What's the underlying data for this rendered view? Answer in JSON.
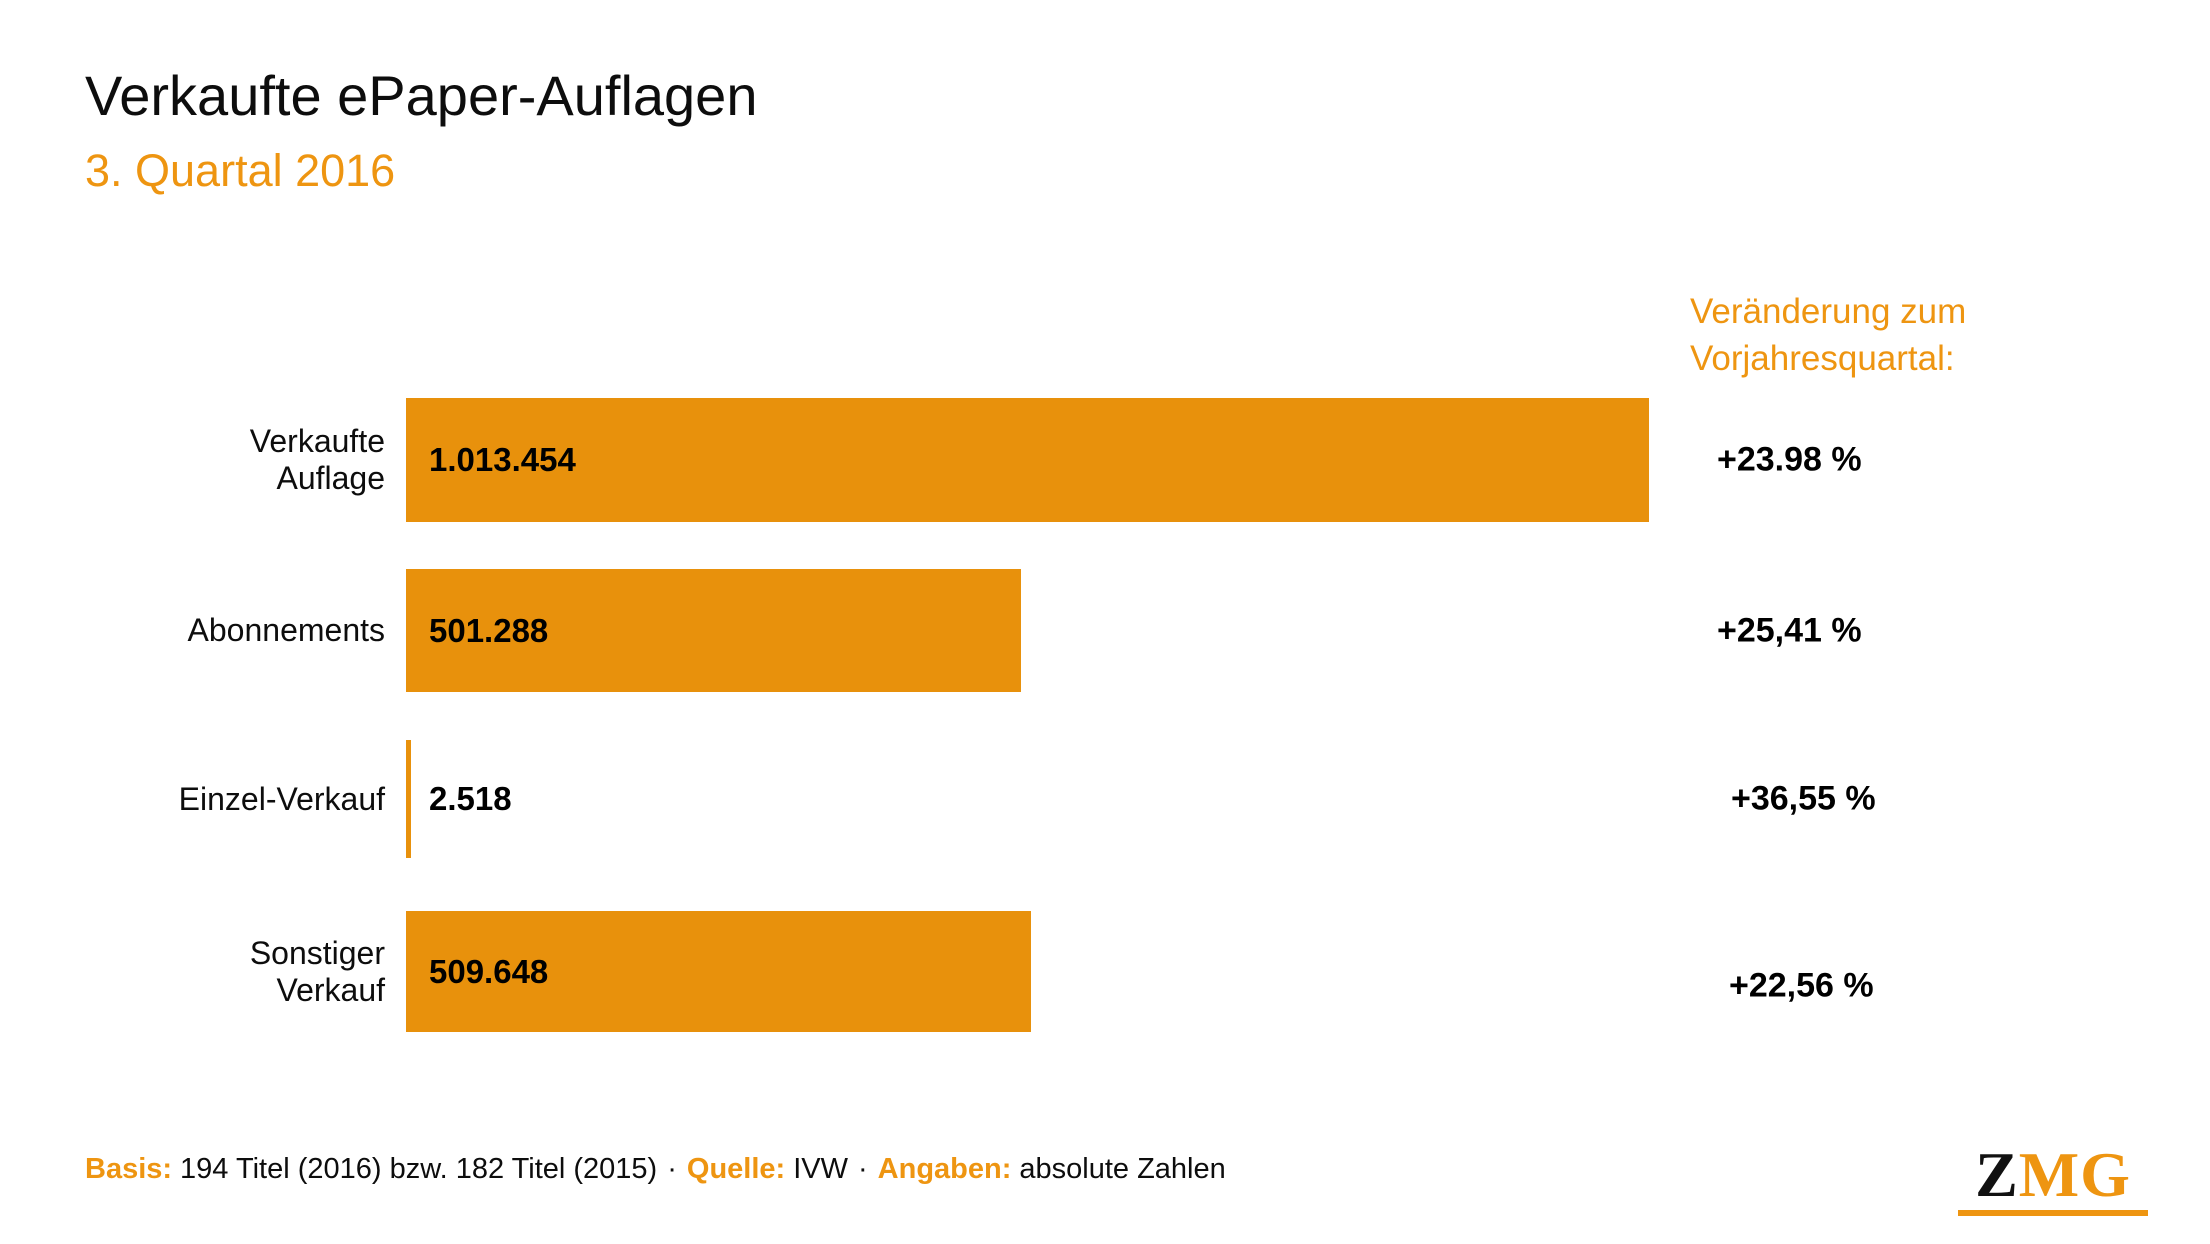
{
  "page": {
    "title": "Verkaufte ePaper-Auflagen",
    "subtitle": "3. Quartal 2016"
  },
  "colors": {
    "accent_orange": "#EE9511",
    "bar_orange": "#E8910C",
    "text_black": "#0d0d0d"
  },
  "chart_data": {
    "type": "bar",
    "orientation": "horizontal",
    "title": "Verkaufte ePaper-Auflagen",
    "subtitle": "3. Quartal 2016",
    "categories": [
      "Verkaufte Auflage",
      "Abonnements",
      "Einzel-Verkauf",
      "Sonstiger Verkauf"
    ],
    "values": [
      1013454,
      501288,
      2518,
      509648
    ],
    "value_labels": [
      "1.013.454",
      "501.288",
      "2.518",
      "509.648"
    ],
    "changes_vs_prev_year": [
      "+23.98 %",
      "+25,41 %",
      "+36,55 %",
      "+22,56 %"
    ],
    "change_header": "Veränderung zum Vorjahresquartal:",
    "xlabel": "",
    "ylabel": "",
    "legend": "none",
    "grid": false,
    "bar_color": "#E8910C",
    "rows": [
      {
        "label_line1": "Verkaufte",
        "label_line2": "Auflage",
        "value": 1013454,
        "value_label": "1.013.454",
        "change": "+23.98 %"
      },
      {
        "label_line1": "Abonnements",
        "label_line2": "",
        "value": 501288,
        "value_label": "501.288",
        "change": "+25,41 %"
      },
      {
        "label_line1": "Einzel-Verkauf",
        "label_line2": "",
        "value": 2518,
        "value_label": "2.518",
        "change": "+36,55 %"
      },
      {
        "label_line1": "Sonstiger",
        "label_line2": "Verkauf",
        "value": 509648,
        "value_label": "509.648",
        "change": "+22,56 %"
      }
    ]
  },
  "change_header": {
    "line1": "Veränderung zum",
    "line2": "Vorjahresquartal:"
  },
  "footer": {
    "basis_label": "Basis:",
    "basis_text": "194 Titel (2016) bzw. 182 Titel (2015)",
    "sep1": "·",
    "quelle_label": "Quelle:",
    "quelle_text": "IVW",
    "sep2": "·",
    "angaben_label": "Angaben:",
    "angaben_text": "absolute Zahlen"
  },
  "logo": {
    "z": "Z",
    "mg": "MG"
  }
}
